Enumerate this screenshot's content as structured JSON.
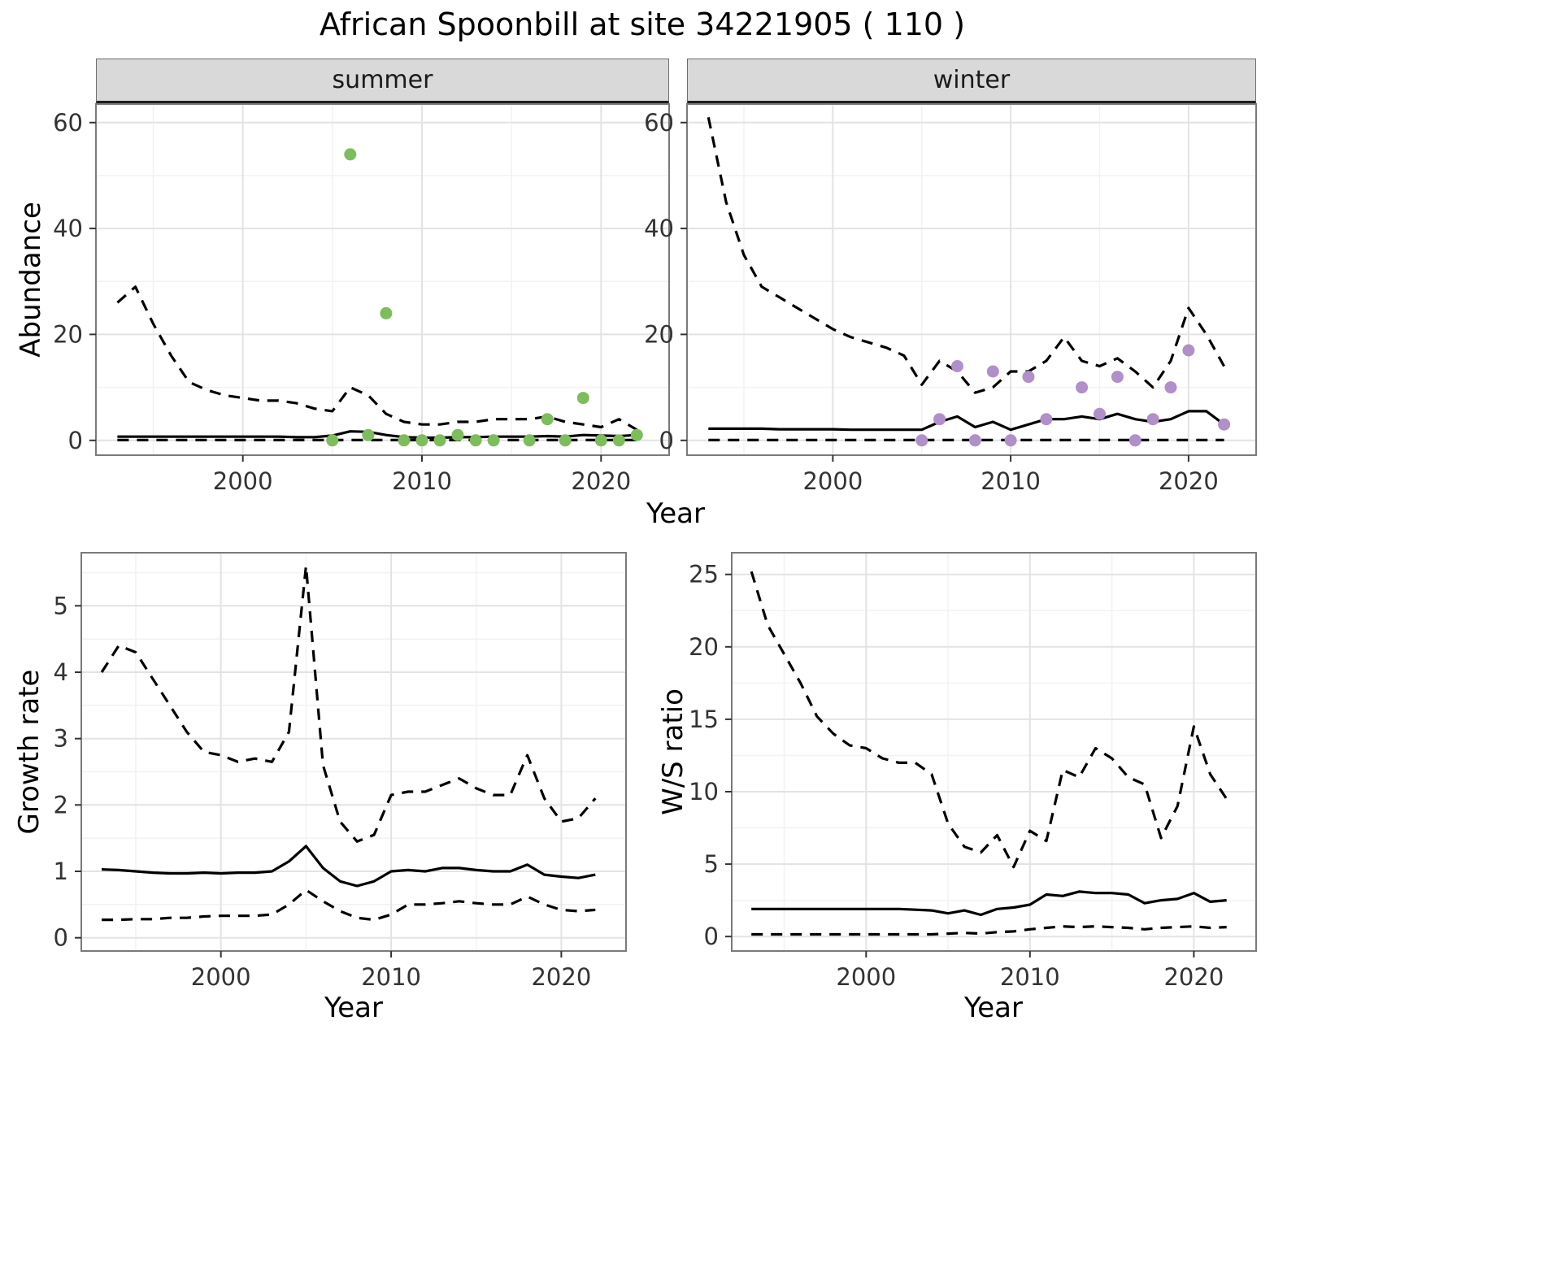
{
  "title": "African Spoonbill at site 34221905 ( 110 )",
  "colors": {
    "line": "#000000",
    "point_summer": "#7dbd5c",
    "point_winter": "#b18fc9",
    "strip_bg": "#d9d9d9",
    "grid_major": "#e3e3e3",
    "grid_minor": "#f2f2f2",
    "panel_border": "#7a7a7a",
    "axis_text": "#333333"
  },
  "chart_data": [
    {
      "id": "abundance_summer",
      "type": "line",
      "facet": "summer",
      "xlabel": "Year",
      "ylabel": "Abundance",
      "xlim": [
        1991.8,
        2023.8
      ],
      "ylim": [
        -2.8,
        63.5
      ],
      "xticks": [
        2000,
        2010,
        2020
      ],
      "yticks": [
        0,
        20,
        40,
        60
      ],
      "grid": true,
      "legend": "none",
      "x": [
        1993,
        1994,
        1995,
        1996,
        1997,
        1998,
        1999,
        2000,
        2001,
        2002,
        2003,
        2004,
        2005,
        2006,
        2007,
        2008,
        2009,
        2010,
        2011,
        2012,
        2013,
        2014,
        2015,
        2016,
        2017,
        2018,
        2019,
        2020,
        2021,
        2022
      ],
      "series": [
        {
          "name": "upper_ci",
          "style": "dashed",
          "y": [
            26,
            29,
            22,
            16,
            11,
            9.5,
            8.5,
            8,
            7.5,
            7.5,
            7,
            6,
            5.5,
            10,
            8.5,
            5,
            3.5,
            3,
            3,
            3.5,
            3.5,
            4,
            4,
            4,
            4.5,
            3.5,
            3,
            2.5,
            4,
            2
          ]
        },
        {
          "name": "median",
          "style": "solid",
          "y": [
            0.7,
            0.7,
            0.7,
            0.7,
            0.7,
            0.7,
            0.7,
            0.7,
            0.7,
            0.7,
            0.6,
            0.6,
            0.9,
            1.7,
            1.6,
            1.0,
            0.6,
            0.5,
            0.5,
            0.6,
            0.6,
            0.7,
            0.7,
            0.7,
            0.8,
            0.7,
            1.0,
            0.9,
            0.8,
            1.0
          ]
        },
        {
          "name": "lower_ci",
          "style": "dashed",
          "y": [
            0.05,
            0.05,
            0.05,
            0.05,
            0.05,
            0.05,
            0.05,
            0.05,
            0.05,
            0.05,
            0.05,
            0.05,
            0.05,
            0.05,
            0.05,
            0.05,
            0.05,
            0.05,
            0.05,
            0.05,
            0.05,
            0.05,
            0.05,
            0.05,
            0.05,
            0.05,
            0.05,
            0.05,
            0.05,
            0.05
          ]
        }
      ],
      "points": {
        "name": "summer_counts",
        "color": "#7dbd5c",
        "x": [
          2005,
          2006,
          2007,
          2008,
          2009,
          2010,
          2011,
          2012,
          2013,
          2014,
          2016,
          2017,
          2018,
          2019,
          2020,
          2021,
          2022
        ],
        "y": [
          0,
          54,
          1,
          24,
          0,
          0,
          0,
          1,
          0,
          0,
          0,
          4,
          0,
          8,
          0,
          0,
          1
        ]
      }
    },
    {
      "id": "abundance_winter",
      "type": "line",
      "facet": "winter",
      "xlabel": "Year",
      "ylabel": "Abundance",
      "xlim": [
        1991.8,
        2023.8
      ],
      "ylim": [
        -2.8,
        63.5
      ],
      "xticks": [
        2000,
        2010,
        2020
      ],
      "yticks": [
        0,
        20,
        40,
        60
      ],
      "grid": true,
      "legend": "none",
      "x": [
        1993,
        1994,
        1995,
        1996,
        1997,
        1998,
        1999,
        2000,
        2001,
        2002,
        2003,
        2004,
        2005,
        2006,
        2007,
        2008,
        2009,
        2010,
        2011,
        2012,
        2013,
        2014,
        2015,
        2016,
        2017,
        2018,
        2019,
        2020,
        2021,
        2022
      ],
      "series": [
        {
          "name": "upper_ci",
          "style": "dashed",
          "y": [
            61,
            45,
            35,
            29,
            27,
            25,
            23,
            21,
            19.5,
            18.5,
            17.5,
            16,
            10.5,
            15,
            13,
            9,
            10,
            13,
            13,
            15,
            19.5,
            15,
            14,
            15.5,
            13,
            10,
            15,
            25,
            20,
            14
          ]
        },
        {
          "name": "median",
          "style": "solid",
          "y": [
            2.2,
            2.2,
            2.2,
            2.2,
            2.1,
            2.1,
            2.1,
            2.1,
            2.0,
            2.0,
            2.0,
            2.0,
            2.0,
            3.5,
            4.5,
            2.5,
            3.5,
            2.0,
            3.0,
            4.0,
            4.0,
            4.5,
            4.0,
            5.0,
            4.0,
            3.5,
            4.0,
            5.5,
            5.5,
            3.0
          ]
        },
        {
          "name": "lower_ci",
          "style": "dashed",
          "y": [
            0.05,
            0.05,
            0.05,
            0.05,
            0.05,
            0.05,
            0.05,
            0.05,
            0.05,
            0.05,
            0.05,
            0.05,
            0.05,
            0.05,
            0.05,
            0.05,
            0.05,
            0.05,
            0.05,
            0.05,
            0.05,
            0.05,
            0.05,
            0.05,
            0.05,
            0.05,
            0.05,
            0.05,
            0.05,
            0.05
          ]
        }
      ],
      "points": {
        "name": "winter_counts",
        "color": "#b18fc9",
        "x": [
          2005,
          2006,
          2007,
          2008,
          2009,
          2010,
          2011,
          2012,
          2014,
          2015,
          2016,
          2017,
          2018,
          2019,
          2020,
          2022
        ],
        "y": [
          0,
          4,
          14,
          0,
          13,
          0,
          12,
          4,
          10,
          5,
          12,
          0,
          4,
          10,
          17,
          3
        ]
      }
    },
    {
      "id": "growth_rate",
      "type": "line",
      "xlabel": "Year",
      "ylabel": "Growth rate",
      "xlim": [
        1991.8,
        2023.8
      ],
      "ylim": [
        -0.2,
        5.8
      ],
      "xticks": [
        2000,
        2010,
        2020
      ],
      "yticks": [
        0,
        1,
        2,
        3,
        4,
        5
      ],
      "grid": true,
      "legend": "none",
      "x": [
        1993,
        1994,
        1995,
        1996,
        1997,
        1998,
        1999,
        2000,
        2001,
        2002,
        2003,
        2004,
        2005,
        2006,
        2007,
        2008,
        2009,
        2010,
        2011,
        2012,
        2013,
        2014,
        2015,
        2016,
        2017,
        2018,
        2019,
        2020,
        2021,
        2022
      ],
      "series": [
        {
          "name": "upper_ci",
          "style": "dashed",
          "y": [
            4.0,
            4.4,
            4.3,
            3.9,
            3.5,
            3.1,
            2.8,
            2.75,
            2.65,
            2.7,
            2.65,
            3.1,
            5.6,
            2.6,
            1.75,
            1.45,
            1.55,
            2.15,
            2.2,
            2.2,
            2.3,
            2.4,
            2.25,
            2.15,
            2.15,
            2.75,
            2.1,
            1.75,
            1.8,
            2.1
          ]
        },
        {
          "name": "median",
          "style": "solid",
          "y": [
            1.03,
            1.02,
            1.0,
            0.98,
            0.97,
            0.97,
            0.98,
            0.97,
            0.98,
            0.98,
            1.0,
            1.15,
            1.38,
            1.05,
            0.85,
            0.78,
            0.85,
            1.0,
            1.02,
            1.0,
            1.05,
            1.05,
            1.02,
            1.0,
            1.0,
            1.1,
            0.95,
            0.92,
            0.9,
            0.95
          ]
        },
        {
          "name": "lower_ci",
          "style": "dashed",
          "y": [
            0.27,
            0.27,
            0.28,
            0.28,
            0.3,
            0.3,
            0.32,
            0.33,
            0.33,
            0.33,
            0.35,
            0.5,
            0.72,
            0.55,
            0.4,
            0.3,
            0.27,
            0.35,
            0.5,
            0.5,
            0.52,
            0.55,
            0.52,
            0.5,
            0.5,
            0.62,
            0.5,
            0.42,
            0.4,
            0.42
          ]
        }
      ]
    },
    {
      "id": "ws_ratio",
      "type": "line",
      "xlabel": "Year",
      "ylabel": "W/S ratio",
      "xlim": [
        1991.8,
        2023.8
      ],
      "ylim": [
        -1,
        26.5
      ],
      "xticks": [
        2000,
        2010,
        2020
      ],
      "yticks": [
        0,
        5,
        10,
        15,
        20,
        25
      ],
      "grid": true,
      "legend": "none",
      "x": [
        1993,
        1994,
        1995,
        1996,
        1997,
        1998,
        1999,
        2000,
        2001,
        2002,
        2003,
        2004,
        2005,
        2006,
        2007,
        2008,
        2009,
        2010,
        2011,
        2012,
        2013,
        2014,
        2015,
        2016,
        2017,
        2018,
        2019,
        2020,
        2021,
        2022
      ],
      "series": [
        {
          "name": "upper_ci",
          "style": "dashed",
          "y": [
            25.2,
            21.5,
            19.5,
            17.5,
            15.2,
            14.0,
            13.2,
            13.0,
            12.3,
            12.0,
            12.0,
            11.2,
            7.8,
            6.2,
            5.8,
            7.0,
            4.8,
            7.3,
            6.6,
            11.5,
            11.0,
            13.0,
            12.3,
            11.0,
            10.5,
            6.8,
            9.0,
            14.5,
            11.2,
            9.5
          ]
        },
        {
          "name": "median",
          "style": "solid",
          "y": [
            1.9,
            1.9,
            1.9,
            1.9,
            1.9,
            1.9,
            1.9,
            1.9,
            1.9,
            1.9,
            1.85,
            1.8,
            1.6,
            1.8,
            1.5,
            1.9,
            2.0,
            2.2,
            2.9,
            2.8,
            3.1,
            3.0,
            3.0,
            2.9,
            2.3,
            2.5,
            2.6,
            3.0,
            2.4,
            2.5
          ]
        },
        {
          "name": "lower_ci",
          "style": "dashed",
          "y": [
            0.15,
            0.15,
            0.15,
            0.15,
            0.15,
            0.15,
            0.15,
            0.15,
            0.15,
            0.15,
            0.15,
            0.15,
            0.2,
            0.25,
            0.2,
            0.3,
            0.35,
            0.5,
            0.6,
            0.7,
            0.65,
            0.7,
            0.65,
            0.6,
            0.5,
            0.6,
            0.65,
            0.7,
            0.6,
            0.65
          ]
        }
      ]
    }
  ]
}
